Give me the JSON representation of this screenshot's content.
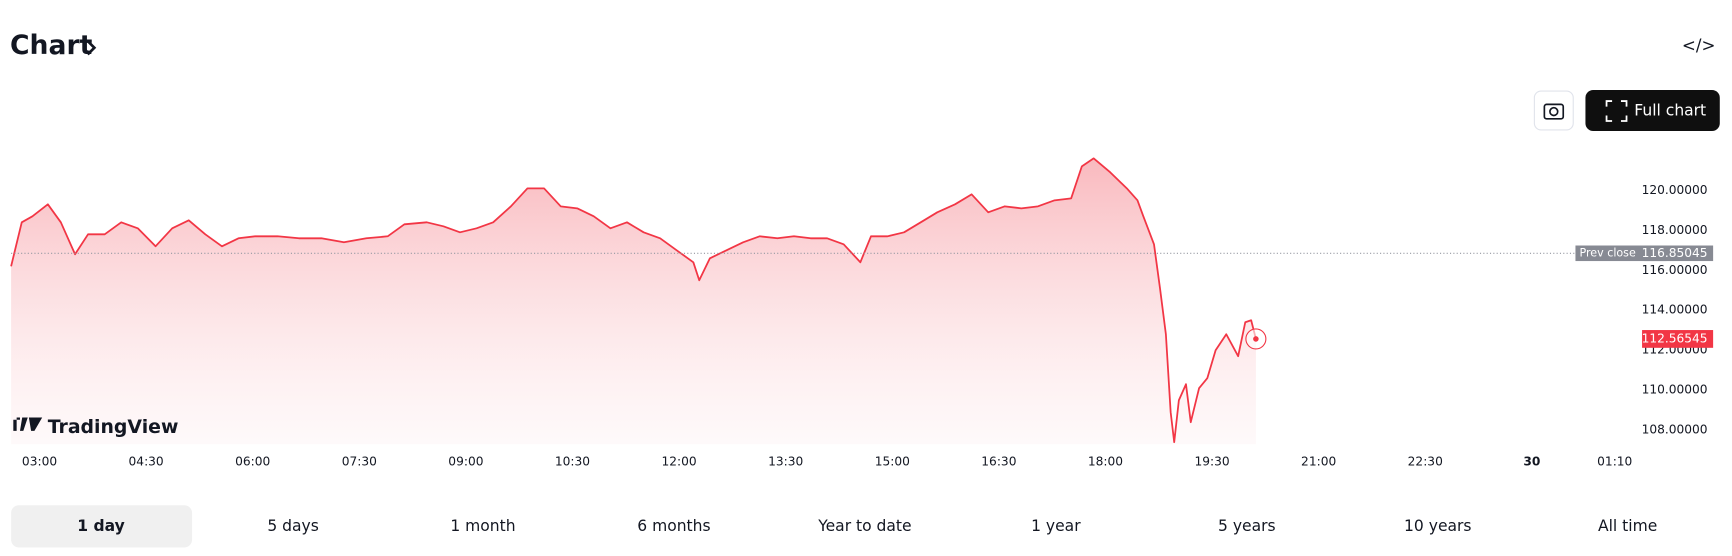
{
  "header": {
    "title": "Chart",
    "embed_icon": "</>"
  },
  "toolbar": {
    "full_chart": "Full chart"
  },
  "logo": "TradingView",
  "chart_data": {
    "type": "line",
    "color": "#f23645",
    "x": [
      -24,
      -15,
      -6,
      7,
      18,
      30,
      41,
      55,
      69,
      83,
      98,
      112,
      126,
      140,
      154,
      168,
      182,
      201,
      219,
      238,
      257,
      276,
      294,
      308,
      327,
      341,
      355,
      369,
      383,
      398,
      412,
      426,
      440,
      454,
      468,
      482,
      496,
      510,
      524,
      538,
      552,
      557,
      566,
      580,
      594,
      608,
      623,
      637,
      651,
      665,
      679,
      693,
      702,
      716,
      730,
      744,
      758,
      773,
      787,
      801,
      815,
      829,
      843,
      857,
      871,
      880,
      890,
      904,
      918,
      927,
      932,
      941,
      946,
      951,
      955,
      958,
      962,
      968,
      972,
      979,
      986,
      993,
      1002,
      1012,
      1018,
      1023,
      1027
    ],
    "values": [
      116.2,
      118.4,
      118.7,
      119.3,
      118.4,
      116.8,
      117.8,
      117.8,
      118.4,
      118.1,
      117.2,
      118.1,
      118.5,
      117.8,
      117.2,
      117.6,
      117.7,
      117.7,
      117.6,
      117.6,
      117.4,
      117.6,
      117.7,
      118.3,
      118.4,
      118.2,
      117.9,
      118.1,
      118.4,
      119.2,
      120.1,
      120.1,
      119.2,
      119.1,
      118.7,
      118.1,
      118.4,
      117.9,
      117.6,
      117.0,
      116.4,
      115.5,
      116.6,
      117.0,
      117.4,
      117.7,
      117.6,
      117.7,
      117.6,
      117.6,
      117.3,
      116.4,
      117.7,
      117.7,
      117.9,
      118.4,
      118.9,
      119.3,
      119.8,
      118.9,
      119.2,
      119.1,
      119.2,
      119.5,
      119.6,
      121.2,
      121.6,
      120.9,
      120.1,
      119.5,
      118.7,
      117.3,
      115.1,
      112.8,
      108.9,
      107.4,
      109.5,
      110.3,
      108.4,
      110.1,
      110.6,
      112.0,
      112.8,
      111.7,
      113.4,
      113.5,
      112.56545
    ],
    "xlim": [
      -24,
      1354
    ],
    "ylim": [
      107.3,
      122.3
    ],
    "xticks": [
      {
        "value": 0,
        "label": "03:00"
      },
      {
        "value": 90,
        "label": "04:30"
      },
      {
        "value": 180,
        "label": "06:00"
      },
      {
        "value": 270,
        "label": "07:30"
      },
      {
        "value": 360,
        "label": "09:00"
      },
      {
        "value": 450,
        "label": "10:30"
      },
      {
        "value": 540,
        "label": "12:00"
      },
      {
        "value": 630,
        "label": "13:30"
      },
      {
        "value": 720,
        "label": "15:00"
      },
      {
        "value": 810,
        "label": "16:30"
      },
      {
        "value": 900,
        "label": "18:00"
      },
      {
        "value": 990,
        "label": "19:30"
      },
      {
        "value": 1080,
        "label": "21:00"
      },
      {
        "value": 1170,
        "label": "22:30"
      },
      {
        "value": 1260,
        "label": "30"
      },
      {
        "value": 1330,
        "label": "01:10"
      }
    ],
    "yticks": [
      {
        "value": 108,
        "label": "108.00000"
      },
      {
        "value": 110,
        "label": "110.00000"
      },
      {
        "value": 112,
        "label": "112.00000"
      },
      {
        "value": 114,
        "label": "114.00000"
      },
      {
        "value": 116,
        "label": "116.00000"
      },
      {
        "value": 118,
        "label": "118.00000"
      },
      {
        "value": 120,
        "label": "120.00000"
      }
    ],
    "prev_close": {
      "label": "Prev close",
      "value": 116.85045
    }
  },
  "ranges": {
    "items": [
      "1 day",
      "5 days",
      "1 month",
      "6 months",
      "Year to date",
      "1 year",
      "5 years",
      "10 years",
      "All time"
    ],
    "active": 0
  }
}
